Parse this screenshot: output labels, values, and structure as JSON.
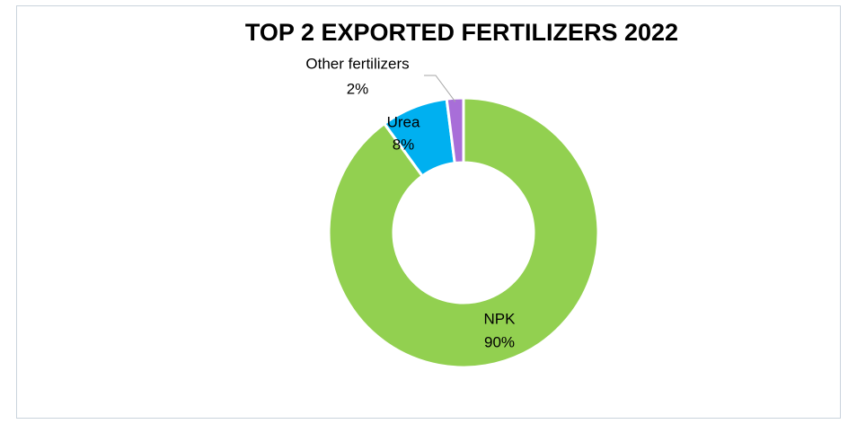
{
  "chart_data": {
    "type": "doughnut",
    "title": "TOP 2 EXPORTED FERTILIZERS 2022",
    "categories": [
      "NPK",
      "Urea",
      "Other fertilizers"
    ],
    "values": [
      90,
      8,
      2
    ],
    "value_labels": [
      "90%",
      "8%",
      "2%"
    ],
    "colors": [
      "#92d050",
      "#00b0f0",
      "#a86ed8"
    ]
  }
}
